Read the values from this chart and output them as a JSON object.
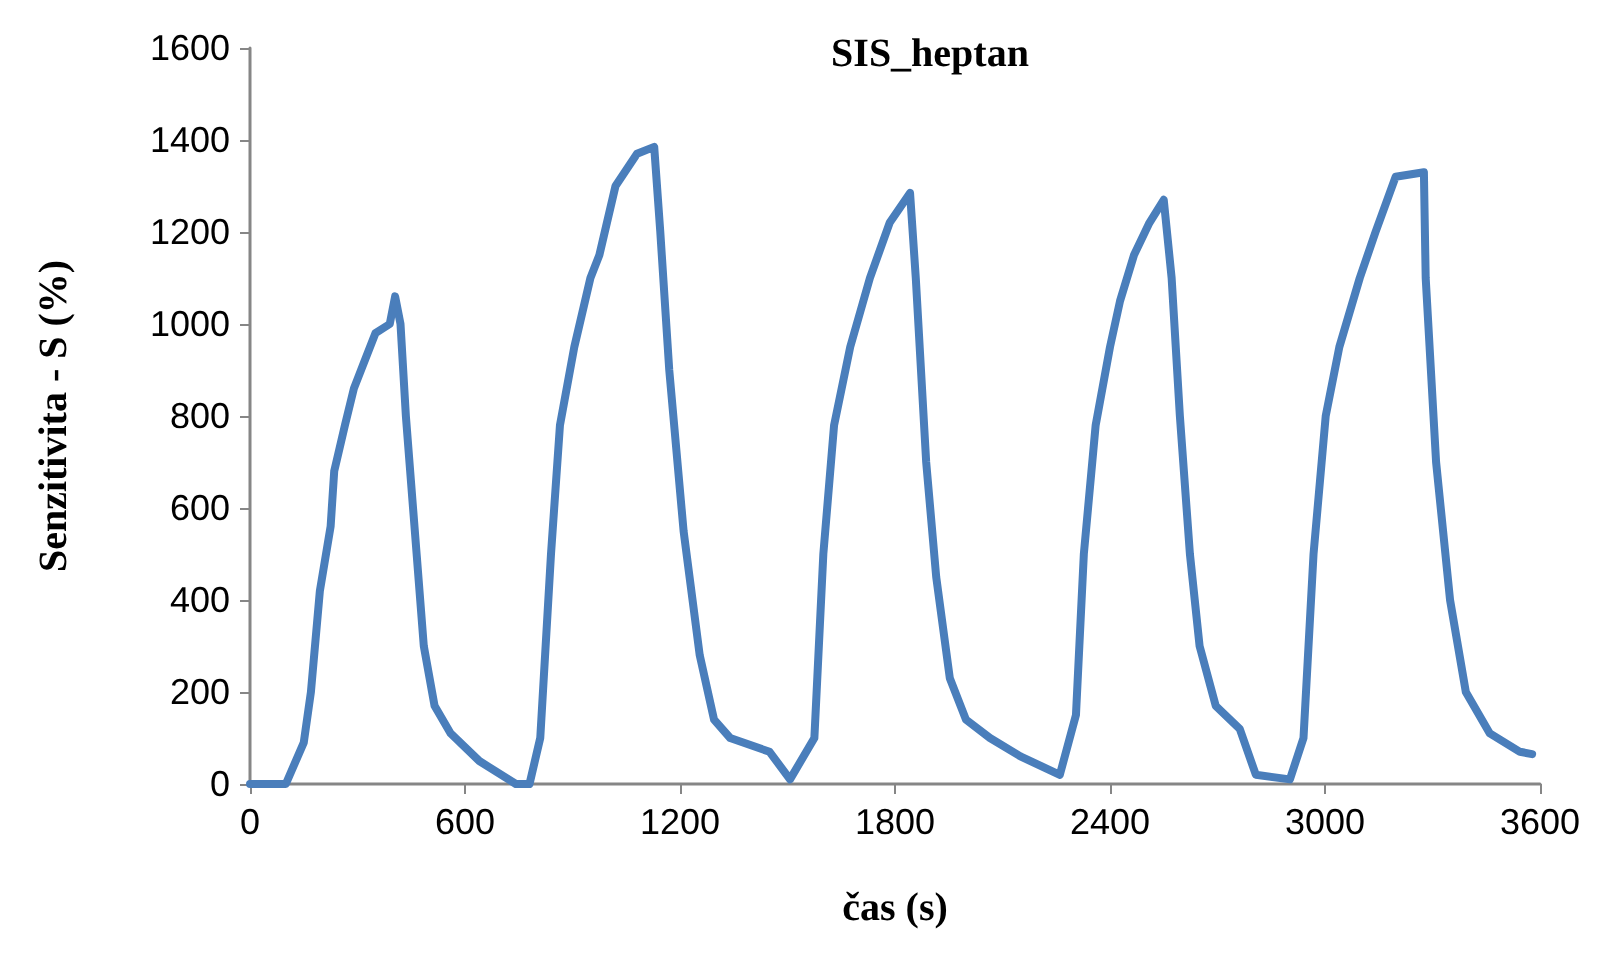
{
  "chart_data": {
    "type": "line",
    "title": "SIS_heptan",
    "xlabel": "čas (s)",
    "ylabel": "Senzitivita - S (%)",
    "x": [
      0,
      100,
      150,
      170,
      195,
      225,
      235,
      265,
      290,
      320,
      350,
      390,
      405,
      420,
      435,
      465,
      485,
      515,
      560,
      640,
      742,
      780,
      810,
      840,
      865,
      905,
      950,
      975,
      1020,
      1080,
      1128,
      1145,
      1170,
      1210,
      1255,
      1295,
      1340,
      1450,
      1507,
      1575,
      1600,
      1630,
      1675,
      1730,
      1785,
      1842,
      1858,
      1887,
      1915,
      1953,
      1998,
      2065,
      2150,
      2260,
      2305,
      2327,
      2360,
      2400,
      2428,
      2467,
      2510,
      2550,
      2572,
      2595,
      2623,
      2650,
      2695,
      2762,
      2807,
      2902,
      2940,
      2968,
      3002,
      3040,
      3097,
      3141,
      3197,
      3276,
      3281,
      3310,
      3349,
      3393,
      3460,
      3544,
      3578
    ],
    "series": [
      {
        "color": "#4a7ebb",
        "values": [
          0,
          0,
          90,
          200,
          420,
          560,
          680,
          780,
          860,
          920,
          980,
          1000,
          1060,
          1000,
          800,
          500,
          300,
          170,
          110,
          50,
          0,
          0,
          100,
          500,
          780,
          950,
          1100,
          1150,
          1300,
          1370,
          1385,
          1200,
          900,
          550,
          280,
          140,
          100,
          70,
          10,
          100,
          500,
          780,
          950,
          1100,
          1220,
          1285,
          1100,
          700,
          450,
          230,
          140,
          100,
          60,
          20,
          150,
          500,
          780,
          950,
          1050,
          1150,
          1220,
          1270,
          1100,
          800,
          500,
          300,
          170,
          120,
          20,
          10,
          100,
          500,
          800,
          950,
          1100,
          1200,
          1320,
          1330,
          1100,
          700,
          400,
          200,
          110,
          70,
          65
        ]
      }
    ],
    "xlim": [
      0,
      3600
    ],
    "xticks": [
      0,
      600,
      1200,
      1800,
      2400,
      3000,
      3600
    ],
    "ylim": [
      0,
      1600
    ],
    "yticks": [
      0,
      200,
      400,
      600,
      800,
      1000,
      1200,
      1400,
      1600
    ],
    "grid": false,
    "marker": "none",
    "line_style": "solid"
  }
}
